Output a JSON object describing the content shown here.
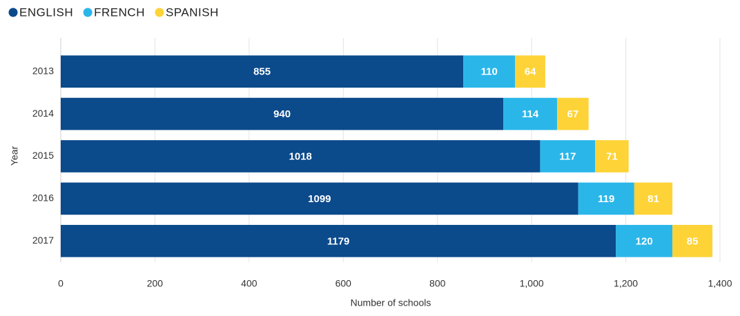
{
  "chart_data": {
    "type": "bar",
    "orientation": "horizontal",
    "stacked": true,
    "categories": [
      "2013",
      "2014",
      "2015",
      "2016",
      "2017"
    ],
    "series": [
      {
        "name": "ENGLISH",
        "color": "#0b4a8b",
        "values": [
          855,
          940,
          1018,
          1099,
          1179
        ]
      },
      {
        "name": "FRENCH",
        "color": "#2bb6e9",
        "values": [
          110,
          114,
          117,
          119,
          120
        ]
      },
      {
        "name": "SPANISH",
        "color": "#fdd337",
        "values": [
          64,
          67,
          71,
          81,
          85
        ]
      }
    ],
    "xlabel": "Number of schools",
    "ylabel": "Year",
    "xlim": [
      0,
      1400
    ],
    "xticks": [
      0,
      200,
      400,
      600,
      800,
      {
        "value": 1000,
        "label": "1,000"
      },
      {
        "value": 1200,
        "label": "1,200"
      },
      {
        "value": 1400,
        "label": "1,400"
      }
    ],
    "grid": true,
    "legend": "top-left",
    "data_labels": true
  }
}
